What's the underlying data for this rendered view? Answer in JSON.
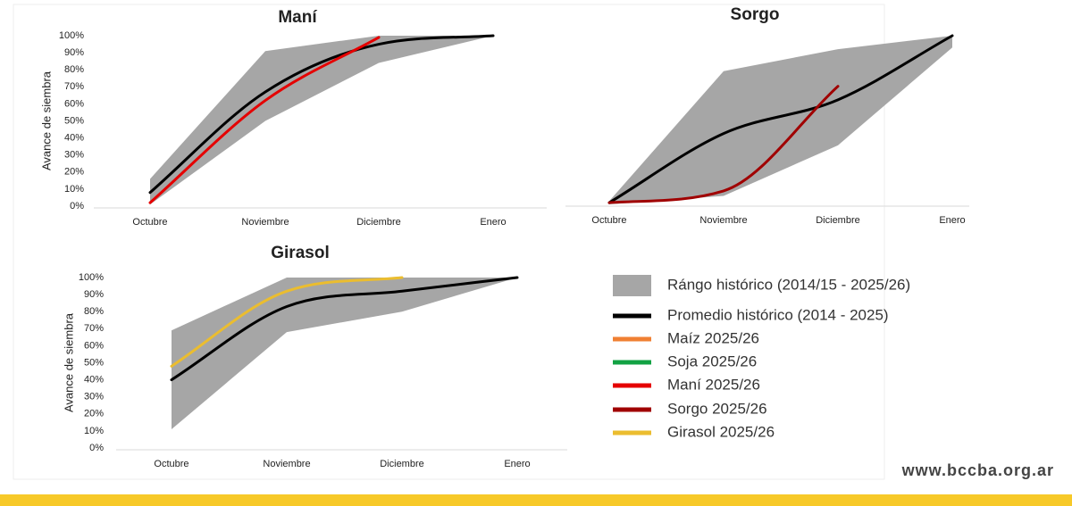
{
  "chart_data": [
    {
      "type": "line",
      "title": "Maní",
      "ylabel": "Avance de siembra",
      "categories": [
        "Octubre",
        "Noviembre",
        "Diciembre",
        "Enero"
      ],
      "ylim": [
        0,
        100
      ],
      "yticks": [
        {
          "value": 0,
          "label": "0%"
        },
        {
          "value": 10,
          "label": "10%"
        },
        {
          "value": 20,
          "label": "20%"
        },
        {
          "value": 30,
          "label": "30%"
        },
        {
          "value": 40,
          "label": "40%"
        },
        {
          "value": 50,
          "label": "50%"
        },
        {
          "value": 60,
          "label": "60%"
        },
        {
          "value": 70,
          "label": "70%"
        },
        {
          "value": 80,
          "label": "80%"
        },
        {
          "value": 90,
          "label": "90%"
        },
        {
          "value": 100,
          "label": "100%"
        }
      ],
      "band": {
        "color": "#a6a6a6",
        "low": [
          1,
          50,
          84,
          100
        ],
        "high": [
          16,
          91,
          100,
          100
        ]
      },
      "series": [
        {
          "color": "#000000",
          "values": [
            8,
            67,
            95,
            100
          ]
        },
        {
          "color": "#e50000",
          "values": [
            2,
            62,
            99,
            null
          ]
        }
      ]
    },
    {
      "type": "line",
      "title": "Sorgo",
      "categories": [
        "Octubre",
        "Noviembre",
        "Diciembre",
        "Enero"
      ],
      "ylim": [
        0,
        100
      ],
      "band": {
        "color": "#a6a6a6",
        "low": [
          0,
          5,
          35,
          93
        ],
        "high": [
          2,
          79,
          92,
          100
        ]
      },
      "series": [
        {
          "color": "#000000",
          "values": [
            1,
            42,
            62,
            100
          ]
        },
        {
          "color": "#a00000",
          "values": [
            1,
            8,
            70,
            null
          ]
        }
      ]
    },
    {
      "type": "line",
      "title": "Girasol",
      "ylabel": "Avance de siembra",
      "categories": [
        "Octubre",
        "Noviembre",
        "Diciembre",
        "Enero"
      ],
      "ylim": [
        0,
        100
      ],
      "yticks": [
        {
          "value": 0,
          "label": "0%"
        },
        {
          "value": 10,
          "label": "10%"
        },
        {
          "value": 20,
          "label": "20%"
        },
        {
          "value": 30,
          "label": "30%"
        },
        {
          "value": 40,
          "label": "40%"
        },
        {
          "value": 50,
          "label": "50%"
        },
        {
          "value": 60,
          "label": "60%"
        },
        {
          "value": 70,
          "label": "70%"
        },
        {
          "value": 80,
          "label": "80%"
        },
        {
          "value": 90,
          "label": "90%"
        },
        {
          "value": 100,
          "label": "100%"
        }
      ],
      "band": {
        "color": "#a6a6a6",
        "low": [
          11,
          68,
          80,
          100
        ],
        "high": [
          69,
          100,
          100,
          100
        ]
      },
      "series": [
        {
          "color": "#000000",
          "values": [
            40,
            83,
            92,
            100
          ]
        },
        {
          "color": "#ebbd2f",
          "values": [
            48,
            92,
            100,
            null
          ]
        }
      ]
    }
  ],
  "legend": [
    {
      "name": "Rángo histórico (2014/15 - 2025/26)",
      "color": "#a6a6a6",
      "swatch": "box"
    },
    {
      "name": "Promedio histórico (2014 - 2025)",
      "color": "#000000",
      "swatch": "line"
    },
    {
      "name": "Maíz 2025/26",
      "color": "#f08033",
      "swatch": "line"
    },
    {
      "name": "Soja 2025/26",
      "color": "#12a243",
      "swatch": "line"
    },
    {
      "name": "Maní 2025/26",
      "color": "#e50000",
      "swatch": "line"
    },
    {
      "name": "Sorgo 2025/26",
      "color": "#a00000",
      "swatch": "line"
    },
    {
      "name": "Girasol 2025/26",
      "color": "#ebbd2f",
      "swatch": "line"
    }
  ],
  "footer": "www.bccba.org.ar"
}
